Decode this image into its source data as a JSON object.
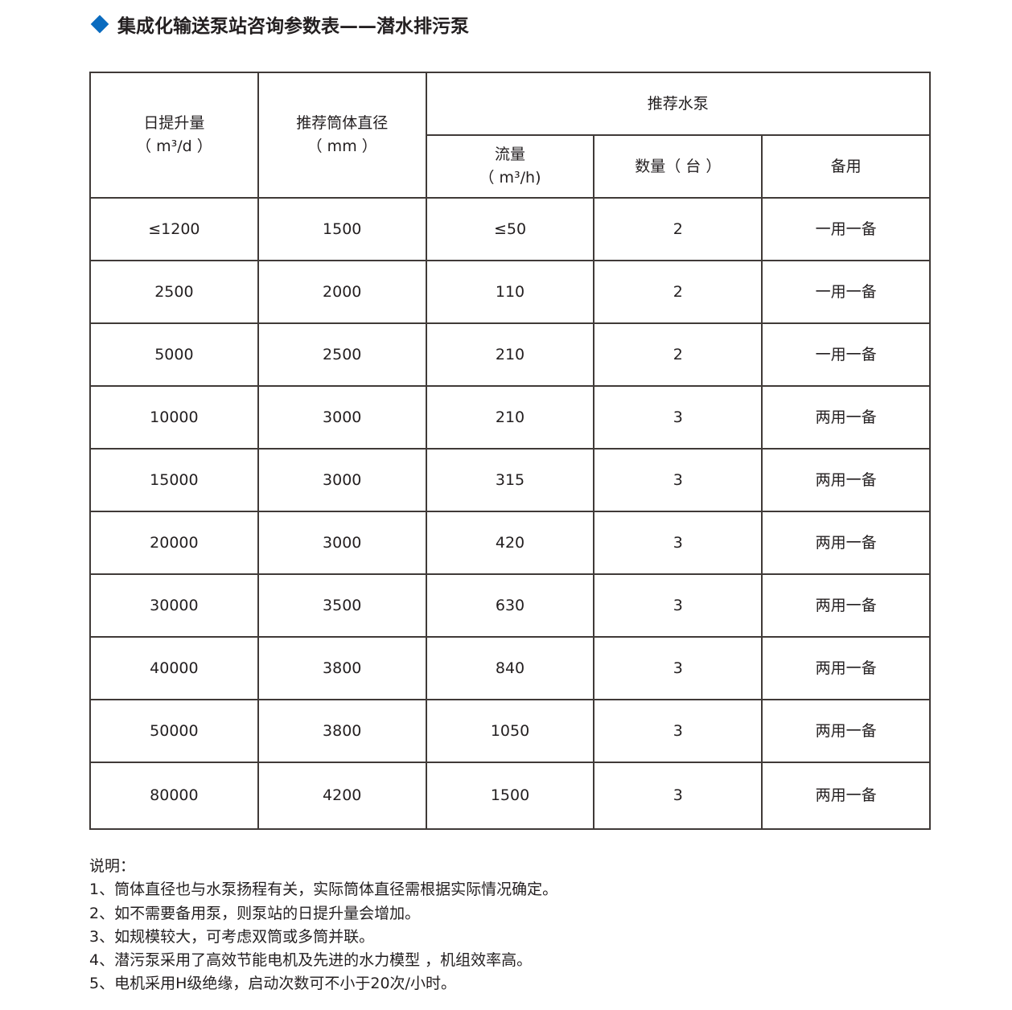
{
  "title": "集成化输送泵站咨询参数表——潜水排污泵",
  "title_icon": "diamond-icon",
  "accent_color": "#0a6bbf",
  "table": {
    "headers": {
      "daily_lift": [
        "日提升量",
        "（ m³/d ）"
      ],
      "diameter": [
        "推荐筒体直径",
        "（ mm ）"
      ],
      "pump_group": "推荐水泵",
      "flow": [
        "流量",
        "（ m³/h)"
      ],
      "count": "数量（ 台 ）",
      "standby": "备用"
    },
    "rows": [
      [
        "≤1200",
        "1500",
        "≤50",
        "2",
        "一用一备"
      ],
      [
        "2500",
        "2000",
        "110",
        "2",
        "一用一备"
      ],
      [
        "5000",
        "2500",
        "210",
        "2",
        "一用一备"
      ],
      [
        "10000",
        "3000",
        "210",
        "3",
        "两用一备"
      ],
      [
        "15000",
        "3000",
        "315",
        "3",
        "两用一备"
      ],
      [
        "20000",
        "3000",
        "420",
        "3",
        "两用一备"
      ],
      [
        "30000",
        "3500",
        "630",
        "3",
        "两用一备"
      ],
      [
        "40000",
        "3800",
        "840",
        "3",
        "两用一备"
      ],
      [
        "50000",
        "3800",
        "1050",
        "3",
        "两用一备"
      ],
      [
        "80000",
        "4200",
        "1500",
        "3",
        "两用一备"
      ]
    ]
  },
  "notes": {
    "heading": "说明：",
    "items": [
      "1、筒体直径也与水泵扬程有关，实际筒体直径需根据实际情况确定。",
      "2、如不需要备用泵，则泵站的日提升量会增加。",
      "3、如规模较大，可考虑双筒或多筒并联。",
      "4、潜污泵采用了高效节能电机及先进的水力模型 ，机组效率高。",
      "5、电机采用H级绝缘，启动次数可不小于20次/小时。"
    ]
  }
}
